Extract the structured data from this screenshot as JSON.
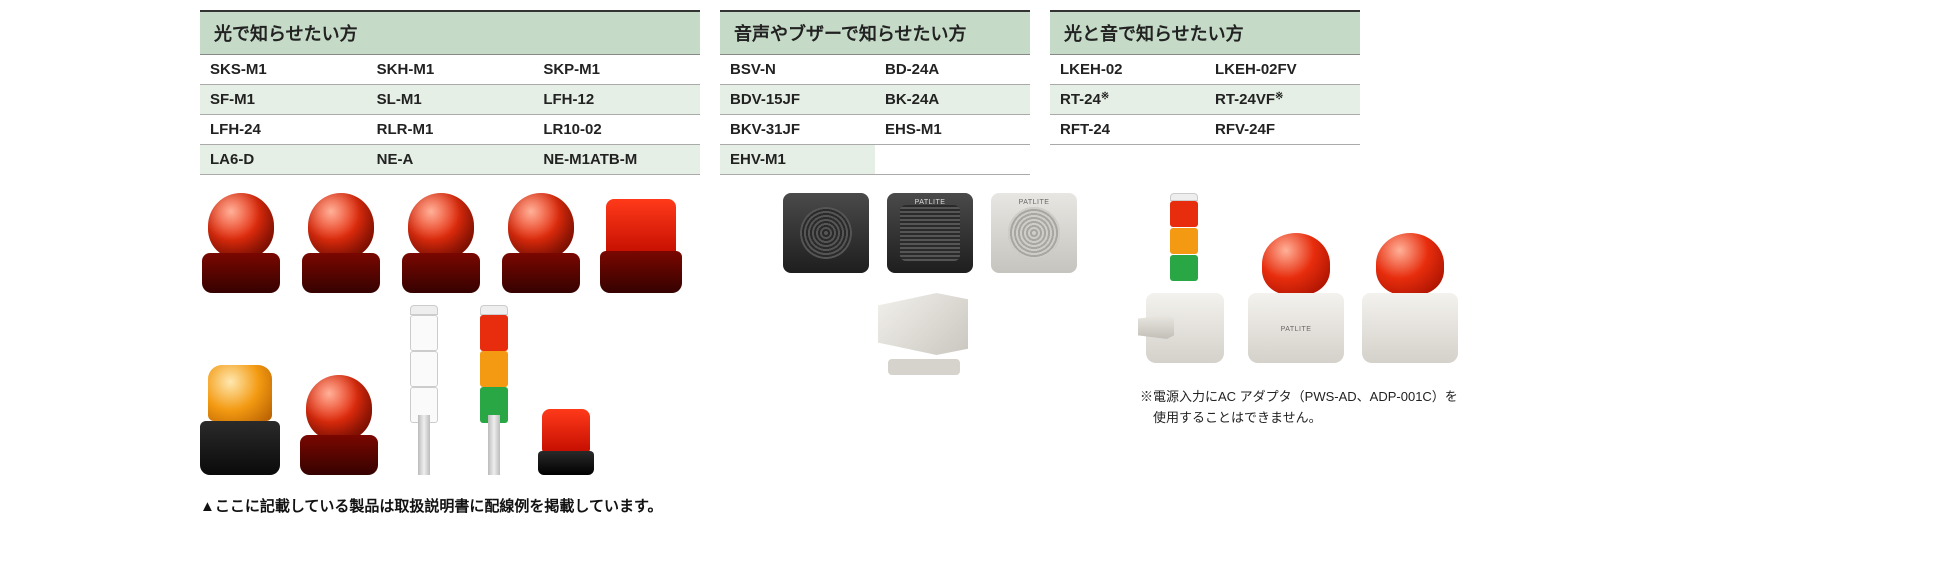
{
  "colors": {
    "header_bg": "#c5dbc7",
    "alt_row_bg": "#e5efe5",
    "border_top": "#333333",
    "border": "#aaaaaa",
    "text": "#222222",
    "red": "#e72d0d",
    "amber": "#f39a12",
    "green": "#29a745",
    "dark_base": "#350200",
    "speaker_dark": "#2a2a2a",
    "speaker_light": "#d4d1ca"
  },
  "sections": {
    "light": {
      "title": "光で知らせたい方",
      "cols": 3,
      "items": [
        "SKS-M1",
        "SKH-M1",
        "SKP-M1",
        "SF-M1",
        "SL-M1",
        "LFH-12",
        "LFH-24",
        "RLR-M1",
        "LR10-02",
        "LA6-D",
        "NE-A",
        "NE-M1ATB-M"
      ]
    },
    "sound": {
      "title": "音声やブザーで知らせたい方",
      "cols": 2,
      "items": [
        "BSV-N",
        "BD-24A",
        "BDV-15JF",
        "BK-24A",
        "BKV-31JF",
        "EHS-M1",
        "EHV-M1",
        ""
      ]
    },
    "both": {
      "title": "光と音で知らせたい方",
      "cols": 2,
      "items": [
        "LKEH-02",
        "LKEH-02FV",
        "RT-24※",
        "RT-24VF※",
        "RFT-24",
        "RFV-24F"
      ],
      "sup_indices": [
        2,
        3
      ]
    }
  },
  "footnotes": {
    "both": "※電源入力にAC アダプタ（PWS-AD、ADP-001C）を\n　使用することはできません。",
    "bottom": "▲ここに記載している製品は取扱説明書に配線例を掲載しています。"
  },
  "brand_caption": "PATLITE"
}
